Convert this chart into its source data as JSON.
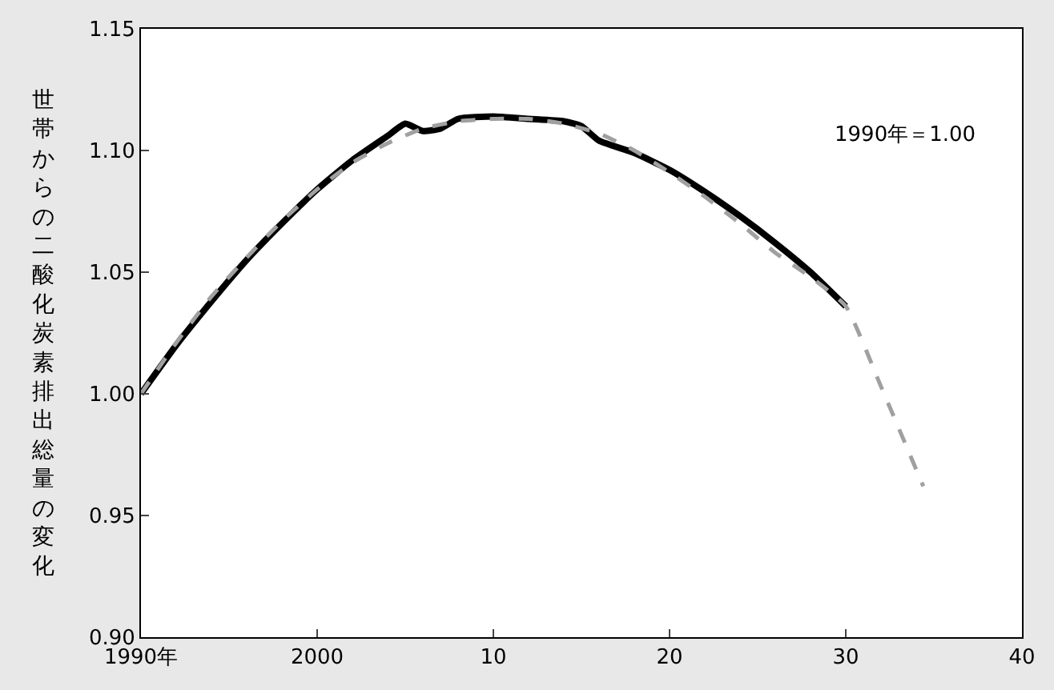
{
  "chart_data": {
    "type": "line",
    "ylabel": "世帯からの二酸化炭素排出総量の変化",
    "annotations": [
      "1990年＝1.00"
    ],
    "xlim": [
      1990,
      2040
    ],
    "ylim": [
      0.9,
      1.15
    ],
    "xticks": [
      {
        "value": 1990,
        "label": "1990年"
      },
      2000,
      {
        "value": 2010,
        "label": "10"
      },
      {
        "value": 2020,
        "label": "20"
      },
      {
        "value": 2030,
        "label": "30"
      },
      {
        "value": 2040,
        "label": "40"
      }
    ],
    "yticks": [
      {
        "value": 0.9,
        "label": "0.90"
      },
      0.95,
      {
        "value": 1.0,
        "label": "1.00"
      },
      1.05,
      {
        "value": 1.1,
        "label": "1.10"
      },
      1.15
    ],
    "legend": false,
    "series": [
      {
        "color": "#000000",
        "line_style": "solid",
        "x": [
          1990,
          1992,
          1994,
          1996,
          1998,
          2000,
          2002,
          2004,
          2005,
          2006,
          2007,
          2008,
          2010,
          2012,
          2014,
          2015,
          2016,
          2018,
          2020,
          2022,
          2024,
          2026,
          2028,
          2030
        ],
        "values": [
          1.0,
          1.02,
          1.038,
          1.055,
          1.07,
          1.084,
          1.096,
          1.106,
          1.111,
          1.108,
          1.109,
          1.113,
          1.114,
          1.113,
          1.112,
          1.11,
          1.104,
          1.099,
          1.092,
          1.083,
          1.073,
          1.062,
          1.05,
          1.036
        ]
      },
      {
        "color": "#a0a0a0",
        "line_style": "dashed",
        "x": [
          1990,
          1992,
          1994,
          1996,
          1998,
          2000,
          2002,
          2004,
          2006,
          2008,
          2010,
          2012,
          2014,
          2016,
          2018,
          2020,
          2022,
          2024,
          2026,
          2028,
          2030,
          2032,
          2034.4
        ],
        "values": [
          1.0,
          1.021,
          1.04,
          1.056,
          1.071,
          1.084,
          1.095,
          1.103,
          1.109,
          1.112,
          1.113,
          1.113,
          1.111,
          1.107,
          1.1,
          1.091,
          1.081,
          1.07,
          1.058,
          1.048,
          1.036,
          1.003,
          0.962
        ]
      }
    ]
  }
}
